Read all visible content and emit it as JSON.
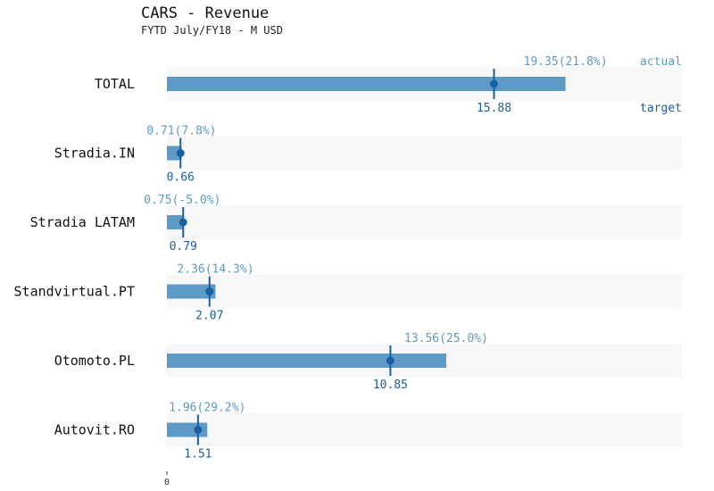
{
  "chart_data": {
    "type": "bar",
    "title": "CARS - Revenue",
    "subtitle": "FYTD July/FY18 - M USD",
    "categories": [
      "TOTAL",
      "Stradia.IN",
      "Stradia LATAM",
      "Standvirtual.PT",
      "Otomoto.PL",
      "Autovit.RO"
    ],
    "series": [
      {
        "name": "actual",
        "values": [
          19.35,
          0.71,
          0.75,
          2.36,
          13.56,
          1.96
        ]
      },
      {
        "name": "target",
        "values": [
          15.88,
          0.66,
          0.79,
          2.07,
          10.85,
          1.51
        ]
      }
    ],
    "actual_labels": [
      "19.35(21.8%)",
      "0.71(7.8%)",
      "0.75(-5.0%)",
      "2.36(14.3%)",
      "13.56(25.0%)",
      "1.96(29.2%)"
    ],
    "target_labels": [
      "15.88",
      "0.66",
      "0.79",
      "2.07",
      "10.85",
      "1.51"
    ],
    "xlim": [
      0,
      25
    ],
    "x_ticks": [
      "0"
    ],
    "legend": {
      "actual": "actual",
      "target": "target"
    },
    "colors": {
      "bar": "#5f9ac6",
      "background_band": "#f7f7f7",
      "target_marker": "#1a5fa0",
      "actual_text": "#5f9ac6",
      "target_text": "#1a5fa0"
    }
  }
}
